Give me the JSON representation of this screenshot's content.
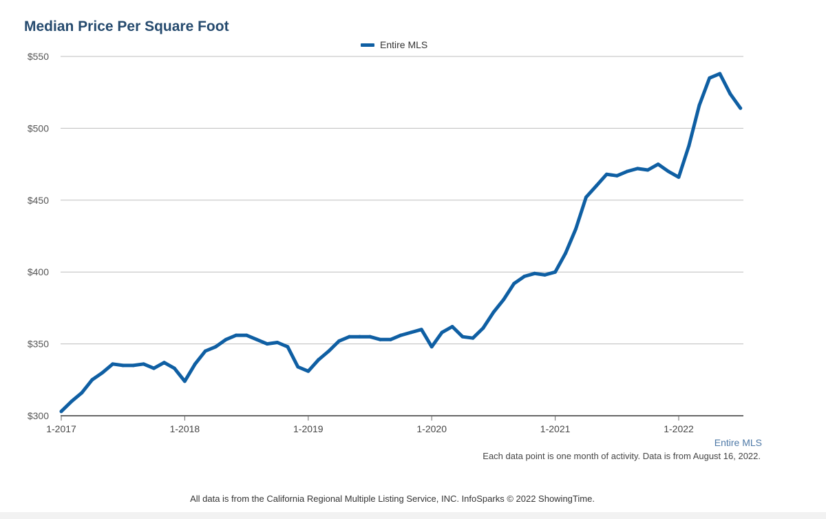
{
  "chart_data": {
    "type": "line",
    "title": "Median Price Per Square Foot",
    "legend": {
      "placement": "top-center",
      "entries": [
        "Entire MLS"
      ]
    },
    "series_label": "Entire MLS",
    "note": "Each data point is one month of activity. Data is from August 16, 2022.",
    "ylim": [
      300,
      550
    ],
    "yticks": [
      300,
      350,
      400,
      450,
      500,
      550
    ],
    "ytick_labels": [
      "$300",
      "$350",
      "$400",
      "$450",
      "$500",
      "$550"
    ],
    "xticks": [
      "1-2017",
      "1-2018",
      "1-2019",
      "1-2020",
      "1-2021",
      "1-2022"
    ],
    "grid": true,
    "line_color": "#0f5fa3",
    "series": [
      {
        "name": "Entire MLS",
        "x": [
          "2017-01",
          "2017-02",
          "2017-03",
          "2017-04",
          "2017-05",
          "2017-06",
          "2017-07",
          "2017-08",
          "2017-09",
          "2017-10",
          "2017-11",
          "2017-12",
          "2018-01",
          "2018-02",
          "2018-03",
          "2018-04",
          "2018-05",
          "2018-06",
          "2018-07",
          "2018-08",
          "2018-09",
          "2018-10",
          "2018-11",
          "2018-12",
          "2019-01",
          "2019-02",
          "2019-03",
          "2019-04",
          "2019-05",
          "2019-06",
          "2019-07",
          "2019-08",
          "2019-09",
          "2019-10",
          "2019-11",
          "2019-12",
          "2020-01",
          "2020-02",
          "2020-03",
          "2020-04",
          "2020-05",
          "2020-06",
          "2020-07",
          "2020-08",
          "2020-09",
          "2020-10",
          "2020-11",
          "2020-12",
          "2021-01",
          "2021-02",
          "2021-03",
          "2021-04",
          "2021-05",
          "2021-06",
          "2021-07",
          "2021-08",
          "2021-09",
          "2021-10",
          "2021-11",
          "2021-12",
          "2022-01",
          "2022-02",
          "2022-03",
          "2022-04",
          "2022-05",
          "2022-06",
          "2022-07"
        ],
        "values": [
          303,
          310,
          316,
          325,
          330,
          336,
          335,
          335,
          336,
          333,
          337,
          333,
          324,
          336,
          345,
          348,
          353,
          356,
          356,
          353,
          350,
          351,
          348,
          334,
          331,
          339,
          345,
          352,
          355,
          355,
          355,
          353,
          353,
          356,
          358,
          360,
          348,
          358,
          362,
          355,
          354,
          361,
          372,
          381,
          392,
          397,
          399,
          398,
          400,
          413,
          430,
          452,
          460,
          468,
          467,
          470,
          472,
          471,
          475,
          470,
          466,
          488,
          516,
          535,
          538,
          524,
          514
        ]
      }
    ]
  },
  "footer": {
    "source": "All data is from the California Regional Multiple Listing Service, INC. InfoSparks © 2022 ShowingTime."
  }
}
